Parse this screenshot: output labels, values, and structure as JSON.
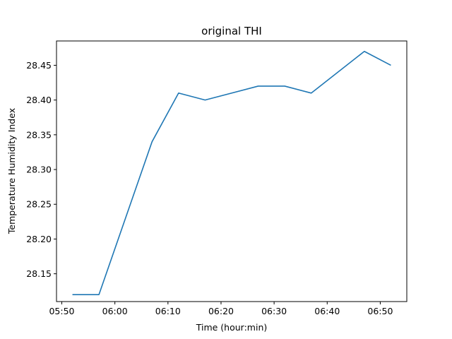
{
  "chart_data": {
    "type": "line",
    "title": "original THI",
    "xlabel": "Time (hour:min)",
    "ylabel": "Temperature Humidity Index",
    "x_ticks": [
      "05:50",
      "06:00",
      "06:10",
      "06:20",
      "06:30",
      "06:40",
      "06:50"
    ],
    "y_ticks": [
      "28.15",
      "28.20",
      "28.25",
      "28.30",
      "28.35",
      "28.40",
      "28.45"
    ],
    "xlim": [
      "05:49",
      "06:55"
    ],
    "ylim": [
      28.11,
      28.485
    ],
    "grid": false,
    "series": [
      {
        "color": "#1f77b4",
        "x": [
          "05:52",
          "05:57",
          "06:07",
          "06:12",
          "06:17",
          "06:27",
          "06:32",
          "06:37",
          "06:47",
          "06:52"
        ],
        "y": [
          28.12,
          28.12,
          28.34,
          28.41,
          28.4,
          28.42,
          28.42,
          28.41,
          28.47,
          28.45
        ]
      }
    ]
  }
}
